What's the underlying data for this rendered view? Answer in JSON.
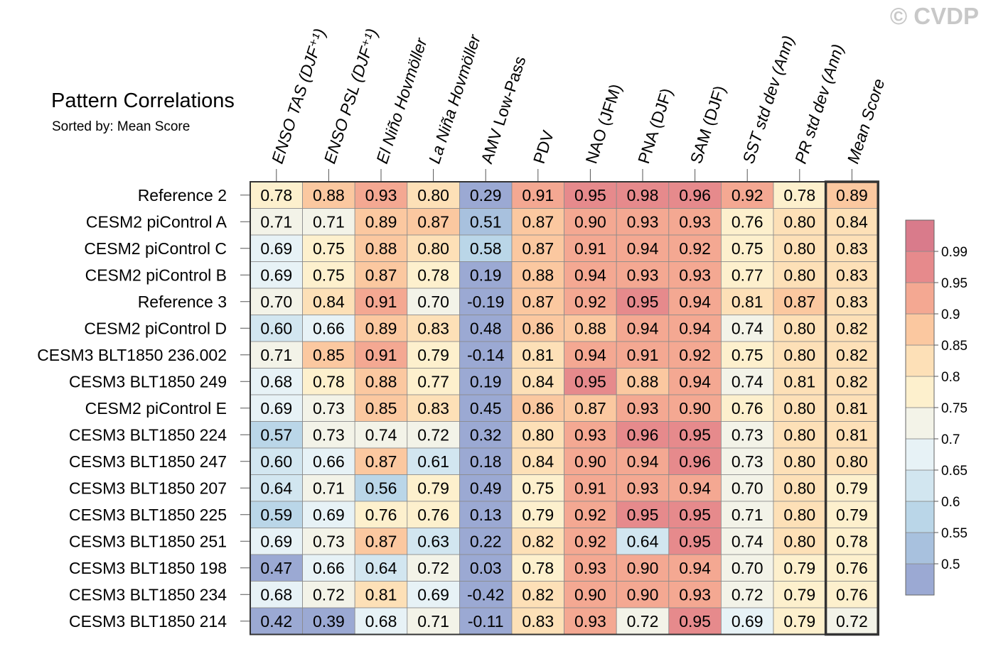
{
  "watermark": "© CVDP",
  "chart_data": {
    "type": "heatmap",
    "title": "Pattern Correlations",
    "subtitle": "Sorted by: Mean Score",
    "columns": [
      "ENSO TAS (DJF⁺¹)",
      "ENSO PSL (DJF⁺¹)",
      "El Niño Hovmöller",
      "La Niña Hovmöller",
      "AMV Low-Pass",
      "PDV",
      "NAO (JFM)",
      "PNA (DJF)",
      "SAM (DJF)",
      "SST std dev (Ann)",
      "PR std dev (Ann)",
      "Mean Score"
    ],
    "rows": [
      {
        "label": "Reference 2",
        "values": [
          0.78,
          0.88,
          0.93,
          0.8,
          0.29,
          0.91,
          0.95,
          0.98,
          0.96,
          0.92,
          0.78,
          0.89
        ]
      },
      {
        "label": "CESM2 piControl A",
        "values": [
          0.71,
          0.71,
          0.89,
          0.87,
          0.51,
          0.87,
          0.9,
          0.93,
          0.93,
          0.76,
          0.8,
          0.84
        ]
      },
      {
        "label": "CESM2 piControl C",
        "values": [
          0.69,
          0.75,
          0.88,
          0.8,
          0.58,
          0.87,
          0.91,
          0.94,
          0.92,
          0.75,
          0.8,
          0.83
        ]
      },
      {
        "label": "CESM2 piControl B",
        "values": [
          0.69,
          0.75,
          0.87,
          0.78,
          0.19,
          0.88,
          0.94,
          0.93,
          0.93,
          0.77,
          0.8,
          0.83
        ]
      },
      {
        "label": "Reference 3",
        "values": [
          0.7,
          0.84,
          0.91,
          0.7,
          -0.19,
          0.87,
          0.92,
          0.95,
          0.94,
          0.81,
          0.87,
          0.83
        ]
      },
      {
        "label": "CESM2 piControl D",
        "values": [
          0.6,
          0.66,
          0.89,
          0.83,
          0.48,
          0.86,
          0.88,
          0.94,
          0.94,
          0.74,
          0.8,
          0.82
        ]
      },
      {
        "label": "CESM3 BLT1850 236.002",
        "values": [
          0.71,
          0.85,
          0.91,
          0.79,
          -0.14,
          0.81,
          0.94,
          0.91,
          0.92,
          0.75,
          0.8,
          0.82
        ]
      },
      {
        "label": "CESM3 BLT1850 249",
        "values": [
          0.68,
          0.78,
          0.88,
          0.77,
          0.19,
          0.84,
          0.95,
          0.88,
          0.94,
          0.74,
          0.81,
          0.82
        ]
      },
      {
        "label": "CESM2 piControl E",
        "values": [
          0.69,
          0.73,
          0.85,
          0.83,
          0.45,
          0.86,
          0.87,
          0.93,
          0.9,
          0.76,
          0.8,
          0.81
        ]
      },
      {
        "label": "CESM3 BLT1850 224",
        "values": [
          0.57,
          0.73,
          0.74,
          0.72,
          0.32,
          0.8,
          0.93,
          0.96,
          0.95,
          0.73,
          0.8,
          0.81
        ]
      },
      {
        "label": "CESM3 BLT1850 247",
        "values": [
          0.6,
          0.66,
          0.87,
          0.61,
          0.18,
          0.84,
          0.9,
          0.94,
          0.96,
          0.73,
          0.8,
          0.8
        ]
      },
      {
        "label": "CESM3 BLT1850 207",
        "values": [
          0.64,
          0.71,
          0.56,
          0.79,
          0.49,
          0.75,
          0.91,
          0.93,
          0.94,
          0.7,
          0.8,
          0.79
        ]
      },
      {
        "label": "CESM3 BLT1850 225",
        "values": [
          0.59,
          0.69,
          0.76,
          0.76,
          0.13,
          0.79,
          0.92,
          0.95,
          0.95,
          0.71,
          0.8,
          0.79
        ]
      },
      {
        "label": "CESM3 BLT1850 251",
        "values": [
          0.69,
          0.73,
          0.87,
          0.63,
          0.22,
          0.82,
          0.92,
          0.64,
          0.95,
          0.74,
          0.8,
          0.78
        ]
      },
      {
        "label": "CESM3 BLT1850 198",
        "values": [
          0.47,
          0.66,
          0.64,
          0.72,
          0.03,
          0.78,
          0.93,
          0.9,
          0.94,
          0.7,
          0.79,
          0.76
        ]
      },
      {
        "label": "CESM3 BLT1850 234",
        "values": [
          0.68,
          0.72,
          0.81,
          0.69,
          -0.42,
          0.82,
          0.9,
          0.9,
          0.93,
          0.72,
          0.79,
          0.76
        ]
      },
      {
        "label": "CESM3 BLT1850 214",
        "values": [
          0.42,
          0.39,
          0.68,
          0.71,
          -0.11,
          0.83,
          0.93,
          0.72,
          0.95,
          0.69,
          0.79,
          0.72
        ]
      }
    ],
    "colorbar": {
      "levels": [
        0.5,
        0.55,
        0.6,
        0.65,
        0.7,
        0.75,
        0.8,
        0.85,
        0.9,
        0.95,
        0.99
      ],
      "tick_labels": [
        "0.5",
        "0.55",
        "0.6",
        "0.65",
        "0.7",
        "0.75",
        "0.8",
        "0.85",
        "0.9",
        "0.95",
        "0.99"
      ],
      "colors": [
        "#9ba9d3",
        "#a8c1de",
        "#bad6e8",
        "#d2e6f0",
        "#e7f2f6",
        "#f3f3e8",
        "#fdf0cd",
        "#fde0b7",
        "#fbc8a0",
        "#f4a892",
        "#e68a8c",
        "#d97b8b"
      ]
    },
    "highlighted_column": "Mean Score"
  }
}
